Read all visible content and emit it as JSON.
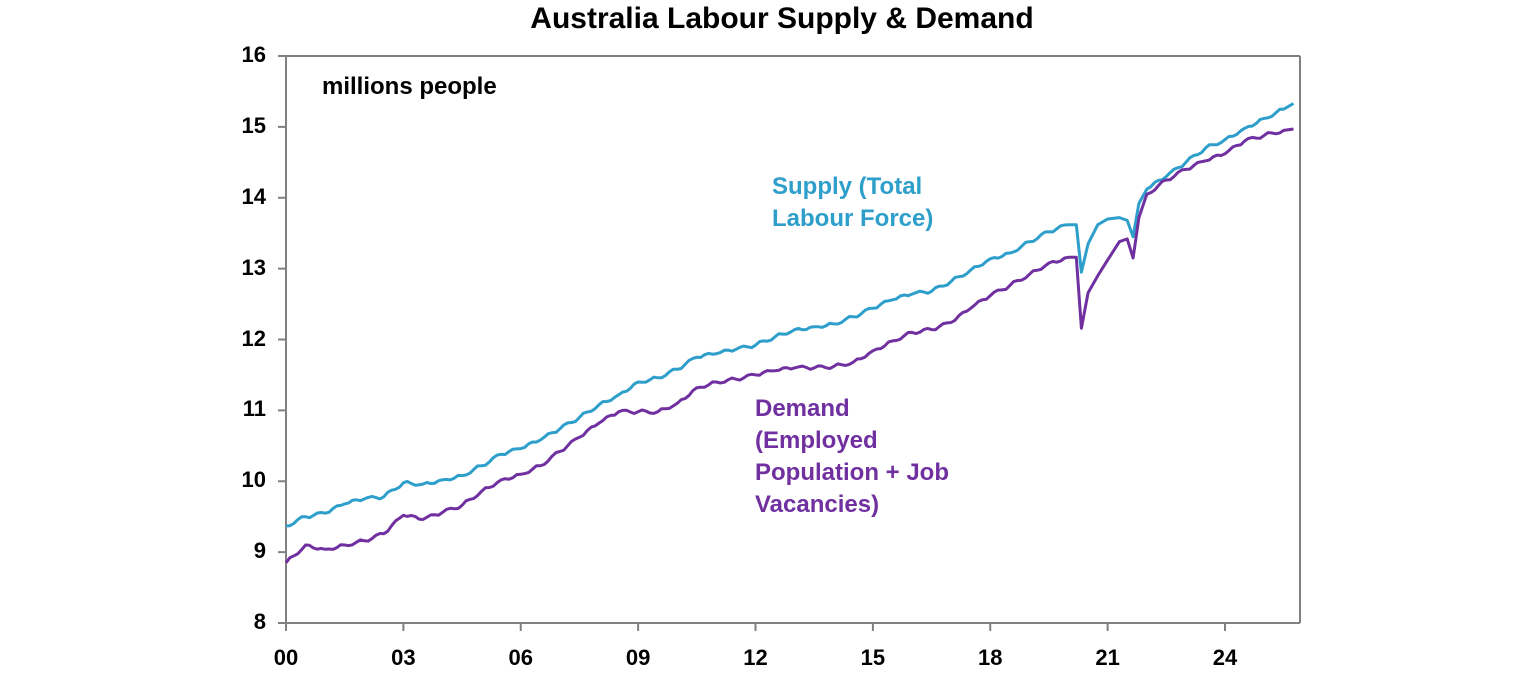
{
  "chart_data": {
    "type": "line",
    "title": "Australia Labour Supply & Demand",
    "unit_label": "millions people",
    "xlabel": "",
    "ylabel": "",
    "ylim": [
      8,
      16
    ],
    "xlim": [
      2000,
      2025.8
    ],
    "grid": false,
    "legend_position": "inline annotations",
    "y_ticks": [
      "16",
      "15",
      "14",
      "13",
      "12",
      "11",
      "10",
      "9",
      "8"
    ],
    "x_ticks": [
      "00",
      "03",
      "06",
      "09",
      "12",
      "15",
      "18",
      "21",
      "24"
    ],
    "x": [
      2000,
      2000.5,
      2001,
      2001.5,
      2002,
      2002.5,
      2003,
      2003.5,
      2004,
      2004.5,
      2005,
      2005.5,
      2006,
      2006.5,
      2007,
      2007.5,
      2008,
      2008.5,
      2009,
      2009.5,
      2010,
      2010.5,
      2011,
      2011.5,
      2012,
      2012.5,
      2013,
      2013.5,
      2014,
      2014.5,
      2015,
      2015.5,
      2016,
      2016.5,
      2017,
      2017.5,
      2018,
      2018.5,
      2019,
      2019.5,
      2020,
      2020.2,
      2020.33,
      2020.5,
      2020.75,
      2021,
      2021.3,
      2021.5,
      2021.65,
      2021.8,
      2022,
      2022.5,
      2023,
      2023.5,
      2024,
      2024.5,
      2025,
      2025.5,
      2025.75
    ],
    "series": [
      {
        "name": "Supply (Total Labour Force)",
        "label": "Supply (Total\nLabour Force)",
        "color": "#2E9FCB",
        "values": [
          9.37,
          9.5,
          9.55,
          9.68,
          9.75,
          9.78,
          9.98,
          9.96,
          10.02,
          10.08,
          10.22,
          10.38,
          10.46,
          10.58,
          10.74,
          10.9,
          11.08,
          11.22,
          11.4,
          11.46,
          11.58,
          11.75,
          11.8,
          11.86,
          11.92,
          12.04,
          12.14,
          12.18,
          12.22,
          12.32,
          12.44,
          12.56,
          12.64,
          12.68,
          12.82,
          12.98,
          13.14,
          13.22,
          13.38,
          13.52,
          13.62,
          13.62,
          12.95,
          13.35,
          13.62,
          13.7,
          13.72,
          13.68,
          13.45,
          13.92,
          14.12,
          14.3,
          14.5,
          14.7,
          14.82,
          14.98,
          15.12,
          15.25,
          15.33
        ]
      },
      {
        "name": "Demand (Employed Population + Job Vacancies)",
        "label": "Demand\n(Employed\nPopulation + Job\nVacancies)",
        "color": "#7030A0",
        "values": [
          8.85,
          9.1,
          9.04,
          9.1,
          9.16,
          9.26,
          9.52,
          9.46,
          9.56,
          9.66,
          9.86,
          10.02,
          10.1,
          10.22,
          10.42,
          10.62,
          10.82,
          10.98,
          10.98,
          10.98,
          11.1,
          11.32,
          11.4,
          11.44,
          11.5,
          11.56,
          11.6,
          11.6,
          11.62,
          11.68,
          11.84,
          11.98,
          12.1,
          12.14,
          12.24,
          12.44,
          12.62,
          12.76,
          12.92,
          13.08,
          13.16,
          13.16,
          12.16,
          12.66,
          12.9,
          13.12,
          13.38,
          13.42,
          13.15,
          13.72,
          14.05,
          14.25,
          14.4,
          14.52,
          14.62,
          14.8,
          14.88,
          14.95,
          14.97
        ]
      }
    ]
  },
  "colors": {
    "supply": "#2E9FCB",
    "demand": "#7030A0",
    "axis": "#808080",
    "text": "#000000"
  }
}
